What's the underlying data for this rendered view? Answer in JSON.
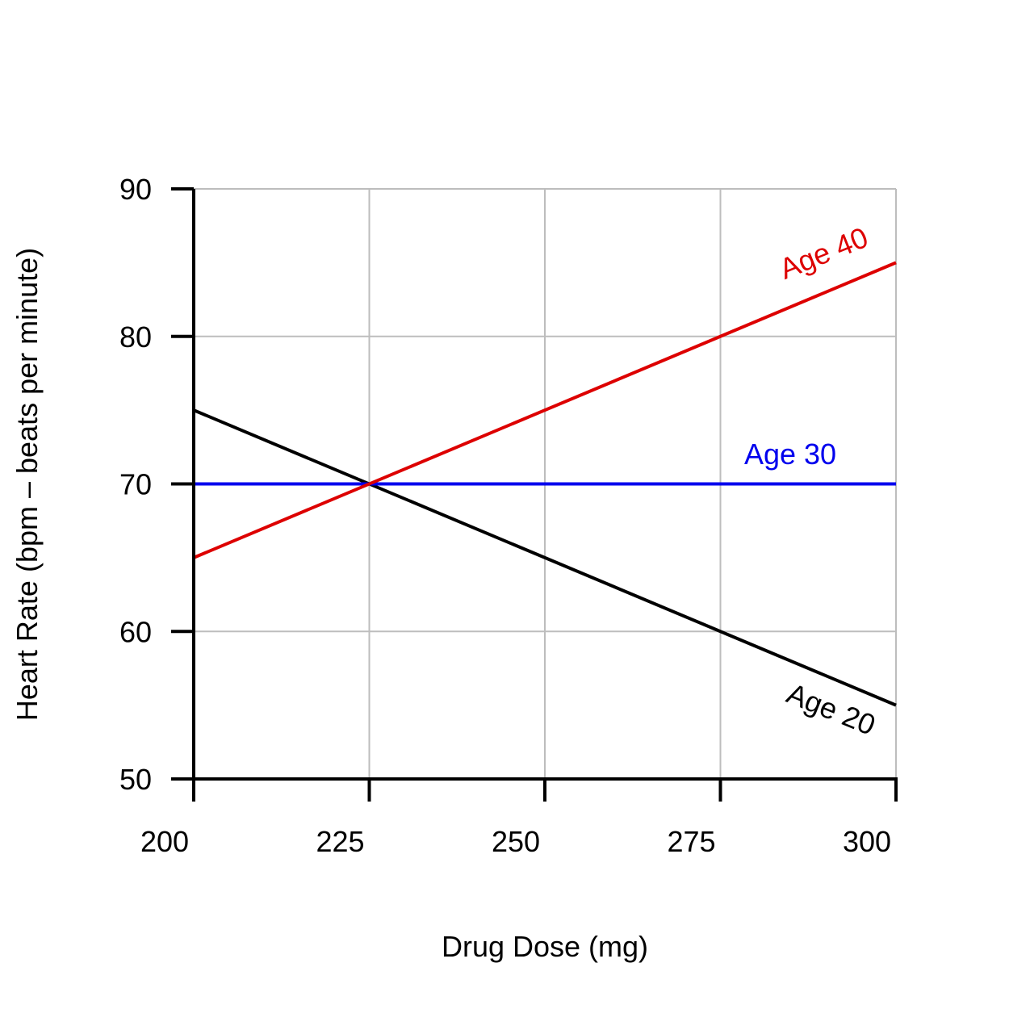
{
  "chart_data": {
    "type": "line",
    "title": "",
    "xlabel": "Drug Dose (mg)",
    "ylabel": "Heart Rate (bpm – beats per minute)",
    "xlim": [
      200,
      300
    ],
    "ylim": [
      50,
      90
    ],
    "x_ticks": [
      200,
      225,
      250,
      275,
      300
    ],
    "y_ticks": [
      50,
      60,
      70,
      80,
      90
    ],
    "grid": true,
    "legend": "none (series labeled directly on lines)",
    "series": [
      {
        "name": "Age 20",
        "color": "#000000",
        "x": [
          200,
          300
        ],
        "y": [
          75,
          55
        ]
      },
      {
        "name": "Age 30",
        "color": "#0000ee",
        "x": [
          200,
          300
        ],
        "y": [
          70,
          70
        ]
      },
      {
        "name": "Age 40",
        "color": "#dd0000",
        "x": [
          200,
          300
        ],
        "y": [
          65,
          85
        ]
      }
    ]
  }
}
